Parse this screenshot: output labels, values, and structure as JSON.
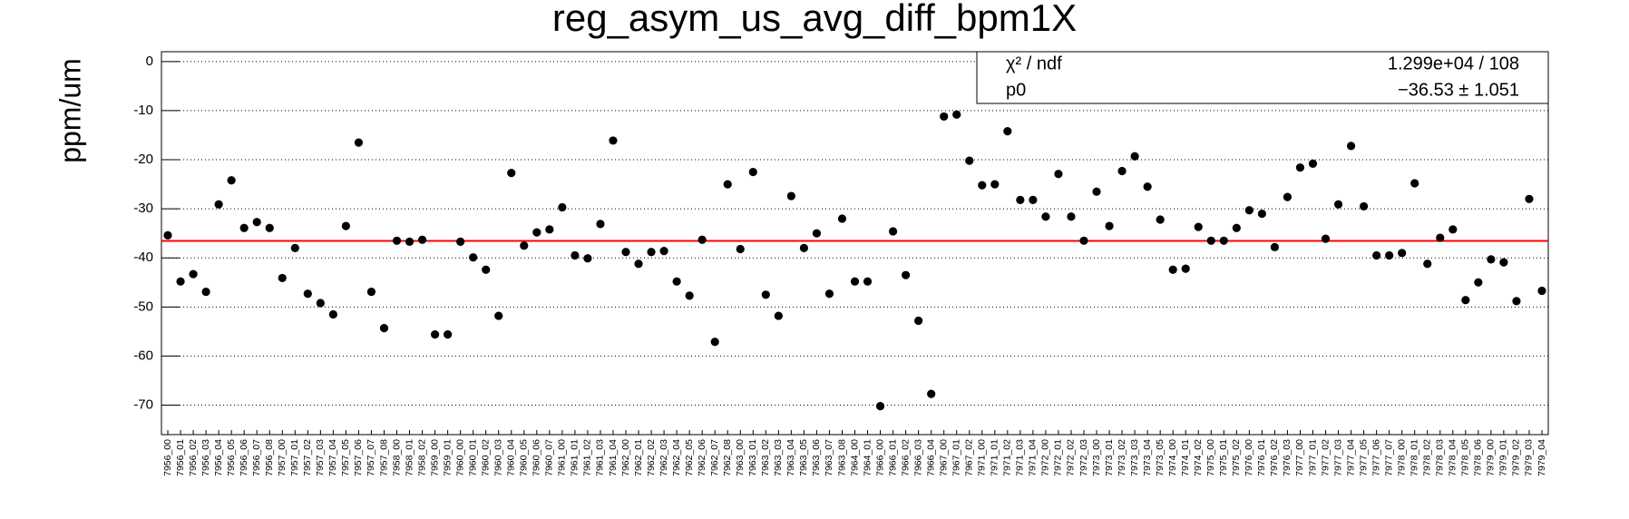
{
  "chart_data": {
    "type": "scatter",
    "title": "reg_asym_us_avg_diff_bpm1X",
    "y_label": "ppm/um",
    "color": "#000000",
    "fit_color": "#ff0000",
    "grid": true,
    "ylim": [
      -76,
      2
    ],
    "yticks": [
      0,
      -10,
      -20,
      -30,
      -40,
      -50,
      -60,
      -70
    ],
    "categories": [
      "7956_00",
      "7956_01",
      "7956_02",
      "7956_03",
      "7956_04",
      "7956_05",
      "7956_06",
      "7956_07",
      "7956_08",
      "7957_00",
      "7957_01",
      "7957_02",
      "7957_03",
      "7957_04",
      "7957_05",
      "7957_06",
      "7957_07",
      "7957_08",
      "7958_00",
      "7958_01",
      "7958_02",
      "7959_00",
      "7959_01",
      "7960_00",
      "7960_01",
      "7960_02",
      "7960_03",
      "7960_04",
      "7960_05",
      "7960_06",
      "7960_07",
      "7961_00",
      "7961_01",
      "7961_02",
      "7961_03",
      "7961_04",
      "7962_00",
      "7962_01",
      "7962_02",
      "7962_03",
      "7962_04",
      "7962_05",
      "7962_06",
      "7962_07",
      "7962_08",
      "7963_00",
      "7963_01",
      "7963_02",
      "7963_03",
      "7963_04",
      "7963_05",
      "7963_06",
      "7963_07",
      "7963_08",
      "7964_00",
      "7964_01",
      "7966_00",
      "7966_01",
      "7966_02",
      "7966_03",
      "7966_04",
      "7967_00",
      "7967_01",
      "7967_02",
      "7971_00",
      "7971_01",
      "7971_02",
      "7971_03",
      "7971_04",
      "7972_00",
      "7972_01",
      "7972_02",
      "7972_03",
      "7973_00",
      "7973_01",
      "7973_02",
      "7973_03",
      "7973_04",
      "7973_05",
      "7974_00",
      "7974_01",
      "7974_02",
      "7975_00",
      "7975_01",
      "7975_02",
      "7976_00",
      "7976_01",
      "7976_02",
      "7976_03",
      "7977_00",
      "7977_01",
      "7977_02",
      "7977_03",
      "7977_04",
      "7977_05",
      "7977_06",
      "7977_07",
      "7978_00",
      "7978_01",
      "7978_02",
      "7978_03",
      "7978_04",
      "7978_05",
      "7978_06",
      "7979_00",
      "7979_01",
      "7979_02",
      "7979_03",
      "7979_04"
    ],
    "values": [
      -35.4,
      -44.8,
      -43.3,
      -46.9,
      -29.1,
      -24.2,
      -33.9,
      -32.7,
      -33.9,
      -44.1,
      -38.0,
      -47.3,
      -49.2,
      -51.5,
      -33.5,
      -16.5,
      -46.9,
      -54.3,
      -36.5,
      -36.7,
      -36.3,
      -55.6,
      -55.6,
      -36.7,
      -39.9,
      -42.4,
      -51.8,
      -22.7,
      -37.5,
      -34.8,
      -34.2,
      -29.7,
      -39.5,
      -40.1,
      -33.1,
      -16.1,
      -38.8,
      -41.2,
      -38.8,
      -38.6,
      -44.8,
      -47.7,
      -36.3,
      -57.1,
      -25.0,
      -38.2,
      -22.5,
      -47.5,
      -51.8,
      -27.4,
      -38.0,
      -35.0,
      -47.3,
      -32.0,
      -44.8,
      -44.8,
      -70.2,
      -34.6,
      -43.5,
      -52.8,
      -67.7,
      -11.2,
      -10.8,
      -20.2,
      -25.2,
      -25.0,
      -14.2,
      -28.2,
      -28.2,
      -31.6,
      -22.9,
      -31.6,
      -36.5,
      -26.5,
      -33.5,
      -22.3,
      -19.3,
      -25.5,
      -32.2,
      -42.4,
      -42.2,
      -33.7,
      -36.5,
      -36.5,
      -33.9,
      -30.3,
      -31.0,
      -37.8,
      -27.6,
      -21.6,
      -20.8,
      -36.1,
      -29.1,
      -17.2,
      -29.5,
      -39.5,
      -39.5,
      -39.0,
      -24.8,
      -41.2,
      -35.9,
      -34.2,
      -48.6,
      -45.0,
      -40.3,
      -40.9,
      -48.8,
      -28.0,
      -46.7
    ],
    "fit": {
      "value": -36.53,
      "label": "−36.53 ± 1.051"
    },
    "stats": [
      {
        "name": "χ² / ndf",
        "value": "1.299e+04 / 108"
      },
      {
        "name": "p0",
        "value": "−36.53 ± 1.051"
      }
    ]
  }
}
